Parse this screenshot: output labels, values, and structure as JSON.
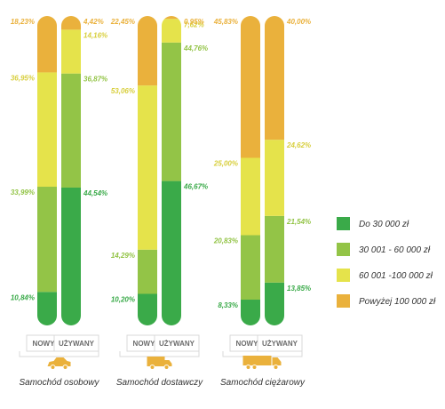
{
  "chart_data": {
    "type": "bar",
    "stacked": true,
    "percent_stacked": true,
    "groups": [
      {
        "name": "Samochód osobowy",
        "icon": "car-icon",
        "bars": [
          {
            "label": "NOWY",
            "values": [
              10.84,
              33.99,
              36.95,
              18.23
            ],
            "labels": [
              "10,84%",
              "33,99%",
              "36,95%",
              "18,23%"
            ]
          },
          {
            "label": "UŻYWANY",
            "values": [
              44.54,
              36.87,
              14.16,
              4.42
            ],
            "labels": [
              "44,54%",
              "36,87%",
              "14,16%",
              "4,42%"
            ]
          }
        ]
      },
      {
        "name": "Samochód dostawczy",
        "icon": "van-icon",
        "bars": [
          {
            "label": "NOWY",
            "values": [
              10.2,
              14.29,
              53.06,
              22.45
            ],
            "labels": [
              "10,20%",
              "14,29%",
              "53,06%",
              "22,45%"
            ]
          },
          {
            "label": "UŻYWANY",
            "values": [
              46.67,
              44.76,
              7.62,
              0.95
            ],
            "labels": [
              "46,67%",
              "44,76%",
              "7,62%",
              "0,95%"
            ]
          }
        ]
      },
      {
        "name": "Samochód ciężarowy",
        "icon": "truck-icon",
        "bars": [
          {
            "label": "NOWY",
            "values": [
              8.33,
              20.83,
              25.0,
              45.83
            ],
            "labels": [
              "8,33%",
              "20,83%",
              "25,00%",
              "45,83%"
            ]
          },
          {
            "label": "UŻYWANY",
            "values": [
              13.85,
              21.54,
              24.62,
              40.0
            ],
            "labels": [
              "13,85%",
              "21,54%",
              "24,62%",
              "40,00%"
            ]
          }
        ]
      }
    ],
    "series": [
      {
        "name": "Do 30 000 zł",
        "color": "#3aaa49"
      },
      {
        "name": "30 001 - 60 000 zł",
        "color": "#93c447"
      },
      {
        "name": "60 001 -100 000 zł",
        "color": "#e5e34b"
      },
      {
        "name": "Powyżej 100 000 zł",
        "color": "#eab13c"
      }
    ],
    "label_colors": [
      "#3aaa49",
      "#93c447",
      "#d8cf3e",
      "#eab13c"
    ],
    "legend_position": "right",
    "grid": false
  }
}
